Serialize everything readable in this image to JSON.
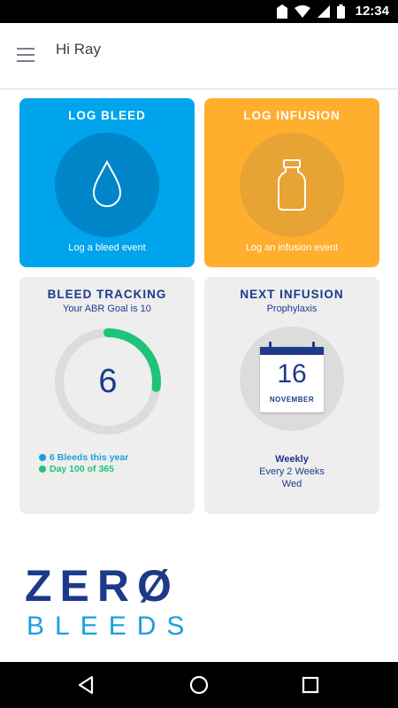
{
  "status_bar": {
    "time": "12:34",
    "icons": [
      "vpn-key-icon",
      "wifi-icon",
      "signal-icon",
      "battery-icon"
    ]
  },
  "app_bar": {
    "greeting": "Hi Ray",
    "menu_icon": "hamburger-menu-icon"
  },
  "cards": {
    "log_bleed": {
      "title": "LOG BLEED",
      "subtitle": "Log a bleed event",
      "icon": "drop-icon",
      "color": "#00a4ec"
    },
    "log_infusion": {
      "title": "LOG INFUSION",
      "subtitle": "Log an infusion event",
      "icon": "vial-icon",
      "color": "#ffae2e"
    },
    "bleed_tracking": {
      "title": "BLEED TRACKING",
      "subtitle": "Your ABR Goal is 10",
      "count": "6",
      "progress_fraction": 0.27,
      "legend": [
        {
          "label": "6 Bleeds this year",
          "color": "#1a9fe0"
        },
        {
          "label": "Day 100 of 365",
          "color": "#1fc47a"
        }
      ]
    },
    "next_infusion": {
      "title": "NEXT INFUSION",
      "subtitle": "Prophylaxis",
      "day": "16",
      "month": "NOVEMBER",
      "schedule": {
        "frequency": "Weekly",
        "interval": "Every 2 Weeks",
        "day": "Wed"
      }
    }
  },
  "logo": {
    "line1": "ZERØ",
    "line2": "BLEEDS"
  },
  "nav": {
    "back": "back-icon",
    "home": "home-icon",
    "recents": "recents-icon"
  }
}
